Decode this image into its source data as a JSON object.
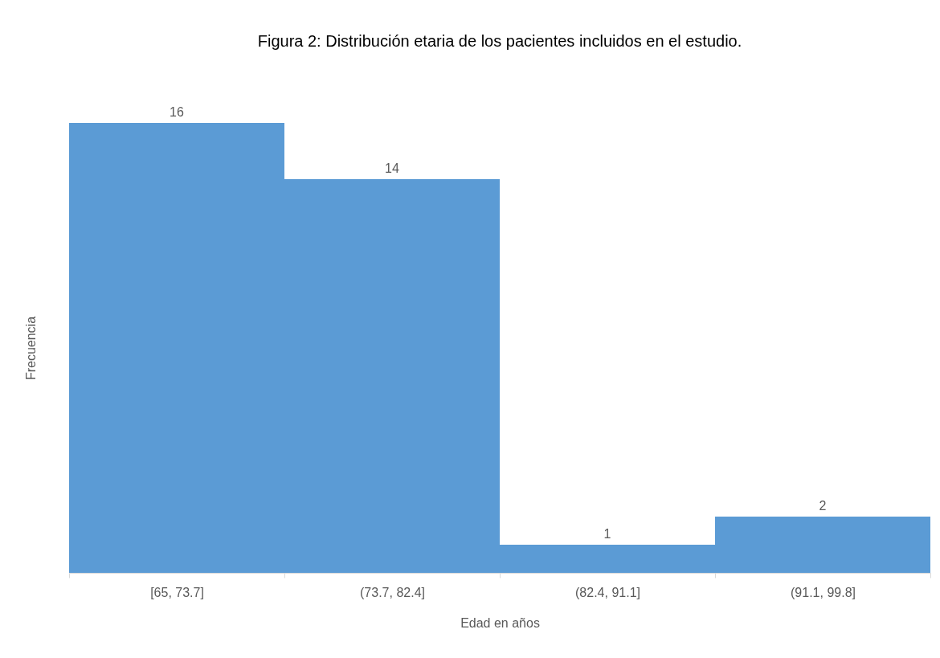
{
  "chart_data": {
    "type": "bar",
    "title": "Figura 2: Distribución etaria de los pacientes incluidos en el estudio.",
    "xlabel": "Edad en años",
    "ylabel": "Frecuencia",
    "categories": [
      "[65, 73.7]",
      "(73.7, 82.4]",
      "(82.4, 91.1]",
      "(91.1, 99.8]"
    ],
    "values": [
      16,
      14,
      1,
      2
    ],
    "color": "#5b9bd5",
    "data_labels": true,
    "grid": false
  }
}
